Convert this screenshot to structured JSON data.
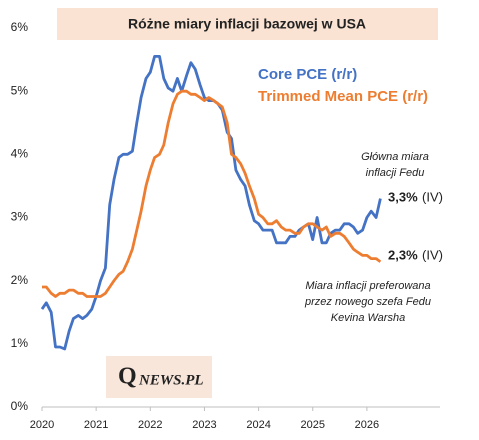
{
  "chart_data": {
    "type": "line",
    "title": "Różne miary inflacji bazowej w USA",
    "x": [
      2020,
      2020.08,
      2020.17,
      2020.25,
      2020.33,
      2020.42,
      2020.5,
      2020.58,
      2020.67,
      2020.75,
      2020.83,
      2020.92,
      2021,
      2021.08,
      2021.17,
      2021.25,
      2021.33,
      2021.42,
      2021.5,
      2021.58,
      2021.67,
      2021.75,
      2021.83,
      2021.92,
      2022,
      2022.08,
      2022.17,
      2022.25,
      2022.33,
      2022.42,
      2022.5,
      2022.58,
      2022.67,
      2022.75,
      2022.83,
      2022.92,
      2023,
      2023.08,
      2023.17,
      2023.25,
      2023.33,
      2023.42,
      2023.5,
      2023.58,
      2023.67,
      2023.75,
      2023.83,
      2023.92,
      2024,
      2024.08,
      2024.17,
      2024.25,
      2024.33,
      2024.42,
      2024.5,
      2024.58,
      2024.67,
      2024.75,
      2024.83,
      2024.92,
      2025,
      2025.08,
      2025.17,
      2025.25,
      2025.33,
      2025.42,
      2025.5,
      2025.58,
      2025.67,
      2025.75,
      2025.83,
      2025.92,
      2026,
      2026.08,
      2026.17,
      2026.25
    ],
    "xlim": [
      2020,
      2027.35
    ],
    "xticks": [
      2020,
      2021,
      2022,
      2023,
      2024,
      2025,
      2026
    ],
    "ylim": [
      0,
      6
    ],
    "yticks": [
      {
        "value": 0,
        "label": "0%"
      },
      {
        "value": 1,
        "label": "1%"
      },
      {
        "value": 2,
        "label": "2%"
      },
      {
        "value": 3,
        "label": "3%"
      },
      {
        "value": 4,
        "label": "4%"
      },
      {
        "value": 5,
        "label": "5%"
      },
      {
        "value": 6,
        "label": "6%"
      }
    ],
    "grid": false,
    "series": [
      {
        "name": "Core PCE (r/r)",
        "color": "#4472c4",
        "end_label": "3,3%",
        "end_note": "(IV)",
        "values": [
          1.55,
          1.65,
          1.5,
          0.95,
          0.95,
          0.92,
          1.2,
          1.4,
          1.45,
          1.4,
          1.45,
          1.55,
          1.75,
          2.0,
          2.2,
          3.2,
          3.6,
          3.95,
          4.0,
          4.0,
          4.05,
          4.5,
          4.9,
          5.2,
          5.3,
          5.55,
          5.55,
          5.2,
          5.05,
          5.0,
          5.2,
          5.0,
          5.25,
          5.45,
          5.35,
          5.1,
          4.9,
          4.85,
          4.85,
          4.8,
          4.7,
          4.35,
          4.25,
          3.75,
          3.6,
          3.5,
          3.2,
          2.95,
          2.9,
          2.8,
          2.8,
          2.8,
          2.6,
          2.6,
          2.6,
          2.7,
          2.7,
          2.8,
          2.85,
          2.9,
          2.65,
          3.0,
          2.6,
          2.6,
          2.75,
          2.8,
          2.8,
          2.9,
          2.9,
          2.85,
          2.75,
          2.8,
          3.0,
          3.1,
          3.0,
          3.3
        ]
      },
      {
        "name": "Trimmed Mean PCE (r/r)",
        "color": "#ed7d31",
        "end_label": "2,3%",
        "end_note": "(IV)",
        "values": [
          1.9,
          1.9,
          1.8,
          1.75,
          1.8,
          1.8,
          1.85,
          1.85,
          1.8,
          1.8,
          1.75,
          1.75,
          1.75,
          1.75,
          1.8,
          1.9,
          2.0,
          2.1,
          2.15,
          2.3,
          2.5,
          2.8,
          3.1,
          3.5,
          3.75,
          3.95,
          4.0,
          4.15,
          4.5,
          4.8,
          4.95,
          5.0,
          5.0,
          4.95,
          4.95,
          4.9,
          4.85,
          4.9,
          4.85,
          4.8,
          4.75,
          4.5,
          4.0,
          3.95,
          3.85,
          3.7,
          3.5,
          3.3,
          3.05,
          3.0,
          2.9,
          2.9,
          2.95,
          2.85,
          2.8,
          2.8,
          2.75,
          2.75,
          2.85,
          2.9,
          2.9,
          2.85,
          2.8,
          2.85,
          2.7,
          2.75,
          2.75,
          2.7,
          2.6,
          2.5,
          2.45,
          2.4,
          2.4,
          2.35,
          2.35,
          2.3
        ]
      }
    ],
    "annotations": [
      "Główna miara",
      "inflacji Fedu",
      "Miara inflacji preferowana",
      "przez nowego szefa Fedu",
      "Kevina Warsha"
    ]
  },
  "logo": {
    "initial": "Q",
    "rest": "NEWS.PL"
  }
}
